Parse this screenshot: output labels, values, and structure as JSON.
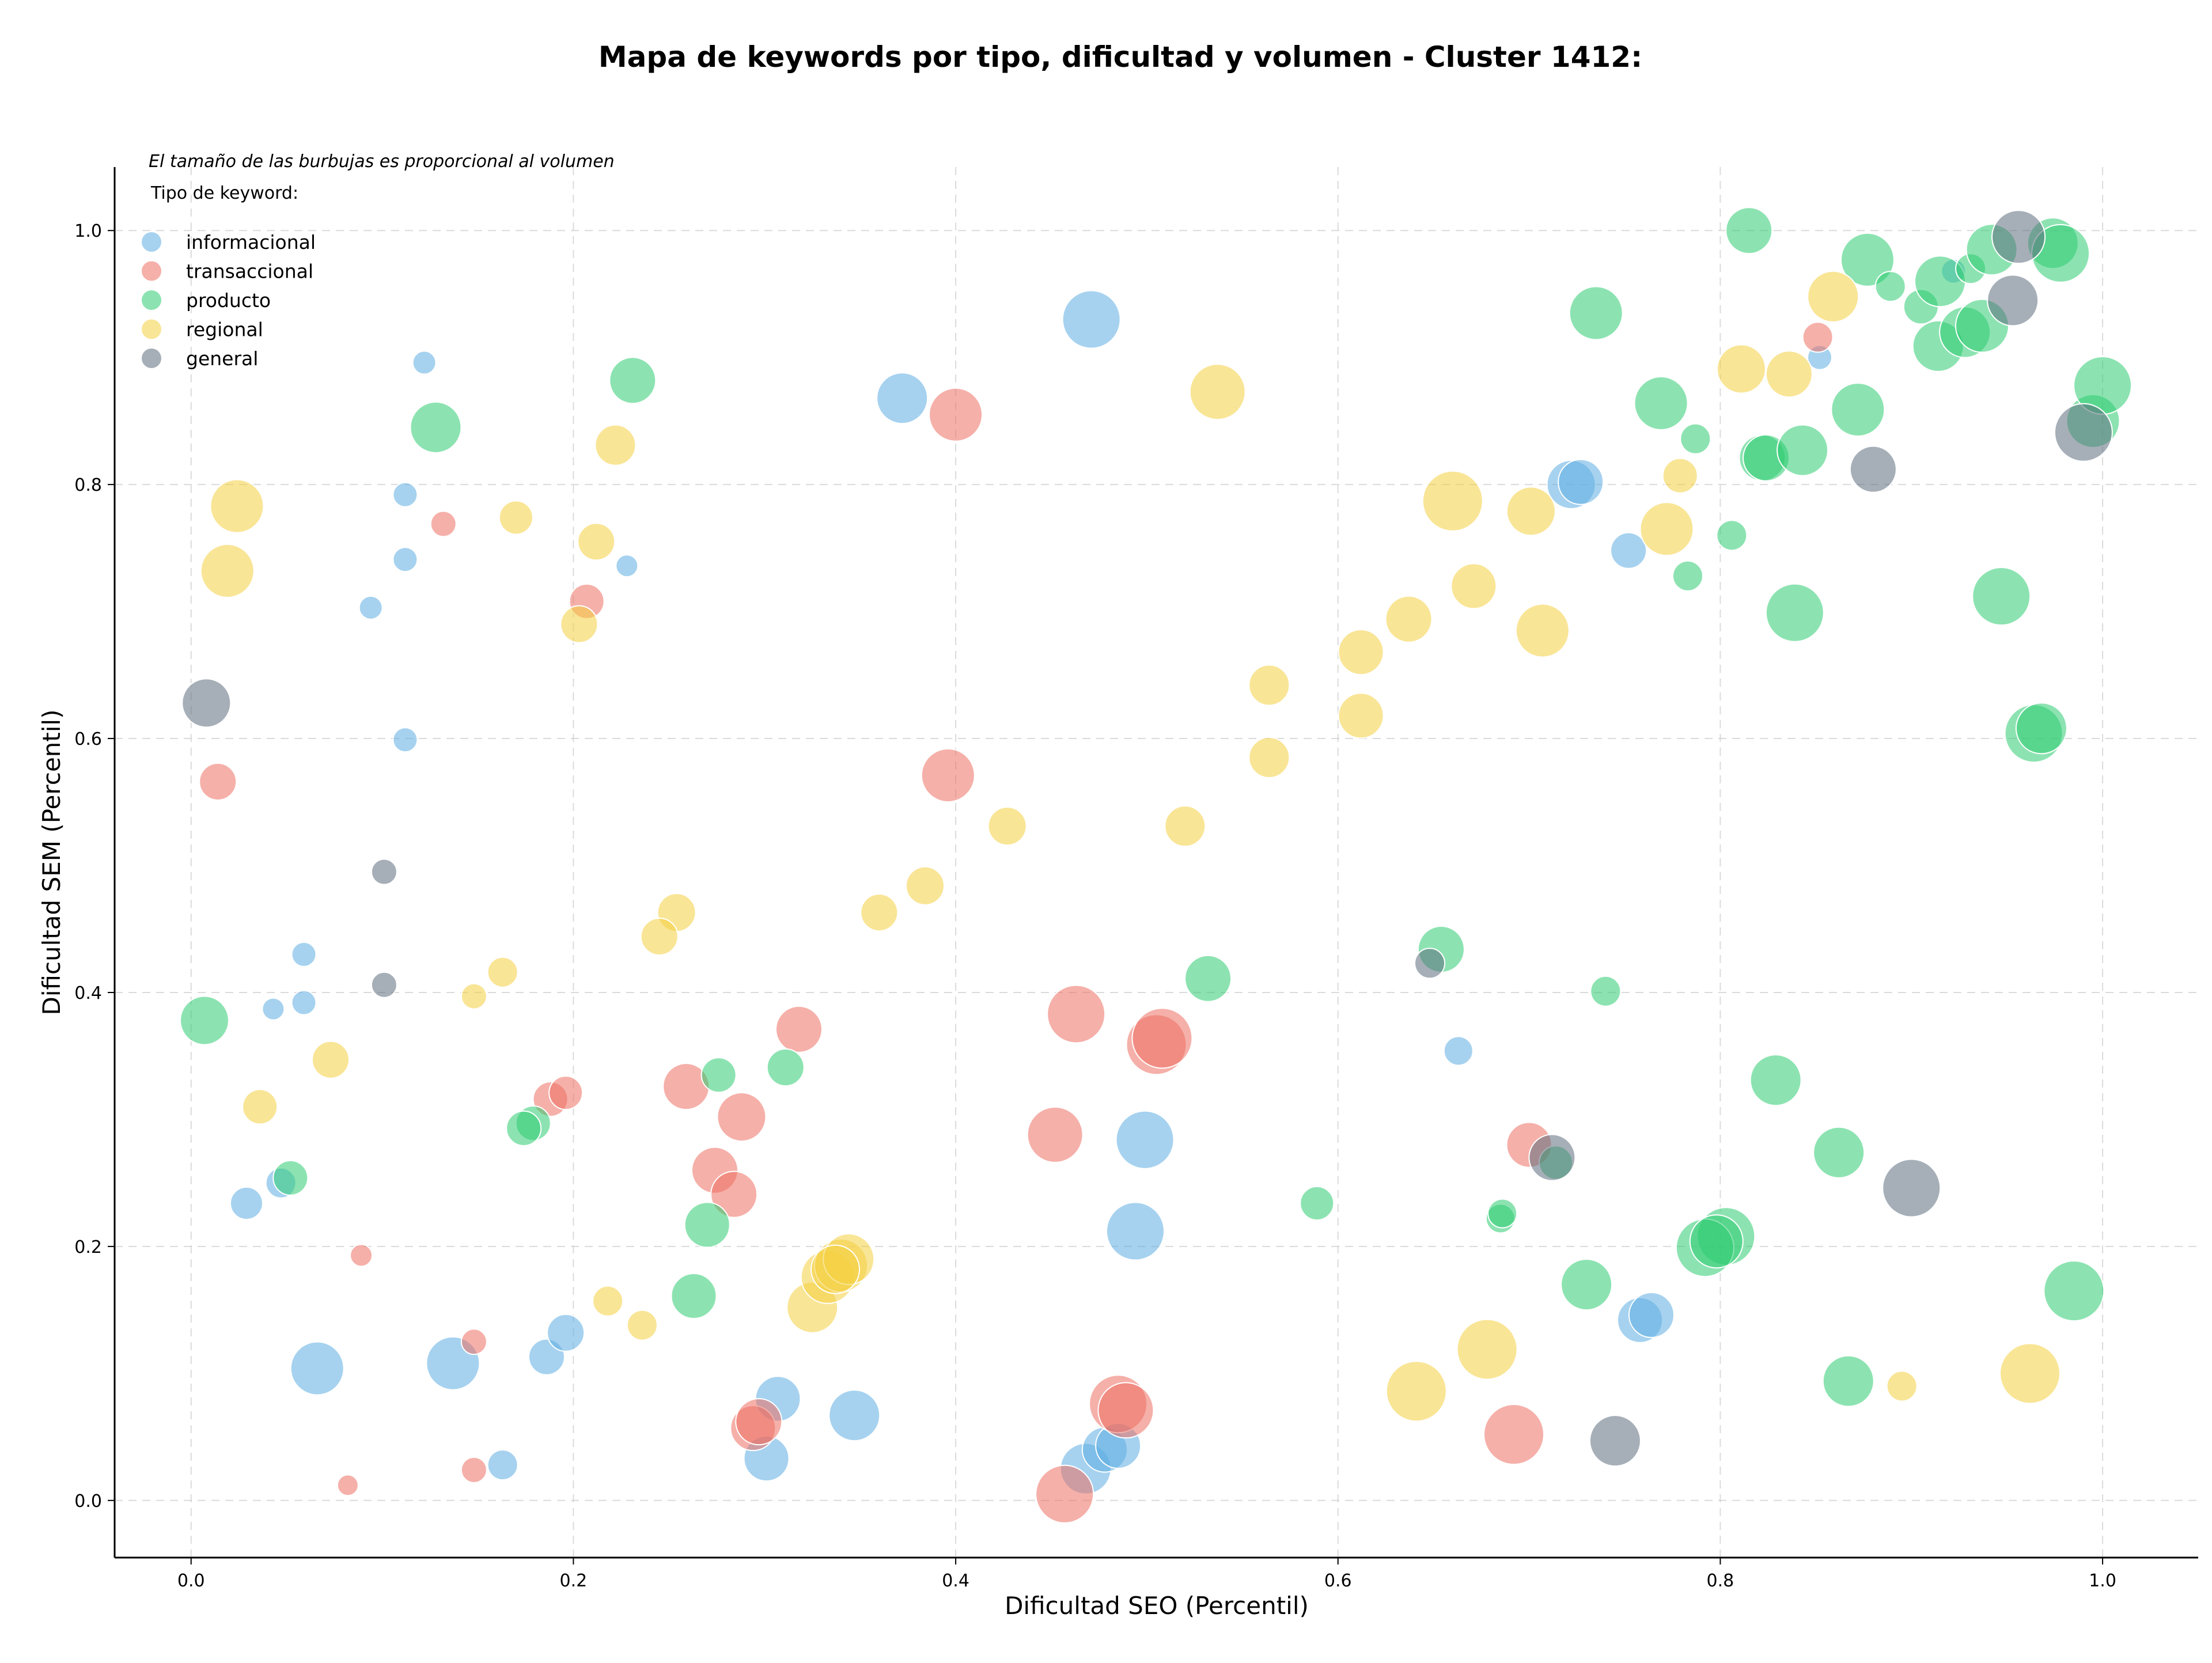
{
  "chart_data": {
    "type": "scatter",
    "title": "Mapa de keywords por tipo, dificultad y volumen - Cluster 1412:",
    "xlabel": "Dificultad SEO (Percentil)",
    "ylabel": "Dificultad SEM (Percentil)",
    "xlim": [
      -0.04,
      1.05
    ],
    "ylim": [
      -0.045,
      1.05
    ],
    "x_ticks": [
      0.0,
      0.2,
      0.4,
      0.6,
      0.8,
      1.0
    ],
    "y_ticks": [
      0.0,
      0.2,
      0.4,
      0.6,
      0.8,
      1.0
    ],
    "x_tick_labels": [
      "0.0",
      "0.2",
      "0.4",
      "0.6",
      "0.8",
      "1.0"
    ],
    "y_tick_labels": [
      "0.0",
      "0.2",
      "0.4",
      "0.6",
      "0.8",
      "1.0"
    ],
    "grid": true,
    "note": "El tamaño de las burbujas es proporcional al volumen",
    "legend_title": "Tipo de keyword:",
    "legend_position": "top-left",
    "series": [
      {
        "name": "informacional",
        "color": "#5dade2",
        "points": [
          [
            0.122,
            0.896,
            20
          ],
          [
            0.112,
            0.792,
            21
          ],
          [
            0.112,
            0.741,
            21
          ],
          [
            0.228,
            0.736,
            19
          ],
          [
            0.094,
            0.703,
            20
          ],
          [
            0.112,
            0.599,
            21
          ],
          [
            0.059,
            0.43,
            21
          ],
          [
            0.059,
            0.392,
            21
          ],
          [
            0.043,
            0.387,
            19
          ],
          [
            0.029,
            0.234,
            28
          ],
          [
            0.047,
            0.25,
            26
          ],
          [
            0.066,
            0.104,
            46
          ],
          [
            0.137,
            0.108,
            46
          ],
          [
            0.186,
            0.113,
            31
          ],
          [
            0.196,
            0.132,
            32
          ],
          [
            0.163,
            0.028,
            26
          ],
          [
            0.307,
            0.08,
            39
          ],
          [
            0.301,
            0.033,
            39
          ],
          [
            0.347,
            0.067,
            44
          ],
          [
            0.372,
            0.868,
            44
          ],
          [
            0.471,
            0.93,
            50
          ],
          [
            0.499,
            0.284,
            50
          ],
          [
            0.494,
            0.212,
            50
          ],
          [
            0.468,
            0.025,
            44
          ],
          [
            0.478,
            0.04,
            39
          ],
          [
            0.485,
            0.043,
            39
          ],
          [
            0.663,
            0.354,
            25
          ],
          [
            0.722,
            0.8,
            42
          ],
          [
            0.727,
            0.802,
            39
          ],
          [
            0.752,
            0.748,
            31
          ],
          [
            0.758,
            0.142,
            39
          ],
          [
            0.764,
            0.146,
            39
          ],
          [
            0.852,
            0.9,
            21
          ],
          [
            0.922,
            0.968,
            21
          ]
        ]
      },
      {
        "name": "transaccional",
        "color": "#ec7063",
        "points": [
          [
            0.014,
            0.566,
            32
          ],
          [
            0.132,
            0.769,
            22
          ],
          [
            0.207,
            0.708,
            30
          ],
          [
            0.188,
            0.316,
            30
          ],
          [
            0.196,
            0.321,
            29
          ],
          [
            0.089,
            0.193,
            19
          ],
          [
            0.148,
            0.125,
            22
          ],
          [
            0.148,
            0.024,
            22
          ],
          [
            0.082,
            0.012,
            18
          ],
          [
            0.259,
            0.326,
            40
          ],
          [
            0.288,
            0.302,
            42
          ],
          [
            0.274,
            0.26,
            40
          ],
          [
            0.284,
            0.241,
            40
          ],
          [
            0.318,
            0.371,
            40
          ],
          [
            0.294,
            0.057,
            39
          ],
          [
            0.297,
            0.062,
            40
          ],
          [
            0.396,
            0.571,
            46
          ],
          [
            0.4,
            0.855,
            46
          ],
          [
            0.463,
            0.383,
            50
          ],
          [
            0.452,
            0.288,
            48
          ],
          [
            0.505,
            0.359,
            52
          ],
          [
            0.508,
            0.364,
            52
          ],
          [
            0.485,
            0.076,
            50
          ],
          [
            0.489,
            0.071,
            48
          ],
          [
            0.457,
            0.005,
            50
          ],
          [
            0.7,
            0.28,
            39
          ],
          [
            0.692,
            0.052,
            52
          ],
          [
            0.851,
            0.916,
            26
          ]
        ]
      },
      {
        "name": "producto",
        "color": "#2ecc71",
        "points": [
          [
            0.128,
            0.845,
            44
          ],
          [
            0.231,
            0.882,
            40
          ],
          [
            0.007,
            0.378,
            42
          ],
          [
            0.052,
            0.254,
            30
          ],
          [
            0.179,
            0.297,
            30
          ],
          [
            0.174,
            0.293,
            30
          ],
          [
            0.276,
            0.335,
            30
          ],
          [
            0.27,
            0.217,
            39
          ],
          [
            0.263,
            0.161,
            39
          ],
          [
            0.311,
            0.341,
            32
          ],
          [
            0.532,
            0.411,
            40
          ],
          [
            0.589,
            0.234,
            29
          ],
          [
            0.654,
            0.434,
            40
          ],
          [
            0.685,
            0.222,
            25
          ],
          [
            0.686,
            0.226,
            25
          ],
          [
            0.714,
            0.266,
            29
          ],
          [
            0.735,
            0.935,
            46
          ],
          [
            0.74,
            0.401,
            26
          ],
          [
            0.73,
            0.17,
            44
          ],
          [
            0.769,
            0.864,
            46
          ],
          [
            0.783,
            0.728,
            26
          ],
          [
            0.787,
            0.836,
            26
          ],
          [
            0.806,
            0.76,
            26
          ],
          [
            0.815,
            1.0,
            40
          ],
          [
            0.822,
            0.821,
            40
          ],
          [
            0.824,
            0.821,
            40
          ],
          [
            0.843,
            0.827,
            44
          ],
          [
            0.839,
            0.699,
            50
          ],
          [
            0.829,
            0.331,
            44
          ],
          [
            0.862,
            0.274,
            44
          ],
          [
            0.867,
            0.094,
            44
          ],
          [
            0.872,
            0.859,
            46
          ],
          [
            0.877,
            0.977,
            46
          ],
          [
            0.889,
            0.956,
            26
          ],
          [
            0.803,
            0.208,
            50
          ],
          [
            0.792,
            0.199,
            50
          ],
          [
            0.798,
            0.204,
            46
          ],
          [
            0.905,
            0.94,
            30
          ],
          [
            0.915,
            0.96,
            44
          ],
          [
            0.914,
            0.909,
            44
          ],
          [
            0.931,
            0.97,
            26
          ],
          [
            0.928,
            0.92,
            44
          ],
          [
            0.937,
            0.925,
            46
          ],
          [
            0.942,
            0.985,
            44
          ],
          [
            0.947,
            0.712,
            50
          ],
          [
            0.964,
            0.604,
            50
          ],
          [
            0.968,
            0.608,
            44
          ],
          [
            0.974,
            0.99,
            44
          ],
          [
            0.978,
            0.982,
            50
          ],
          [
            0.985,
            0.165,
            52
          ],
          [
            0.995,
            0.85,
            46
          ],
          [
            1.0,
            0.878,
            50
          ]
        ]
      },
      {
        "name": "regional",
        "color": "#f4d03f",
        "points": [
          [
            0.024,
            0.783,
            46
          ],
          [
            0.019,
            0.732,
            46
          ],
          [
            0.17,
            0.774,
            29
          ],
          [
            0.222,
            0.831,
            35
          ],
          [
            0.212,
            0.755,
            32
          ],
          [
            0.203,
            0.69,
            32
          ],
          [
            0.163,
            0.416,
            26
          ],
          [
            0.148,
            0.397,
            22
          ],
          [
            0.073,
            0.347,
            32
          ],
          [
            0.036,
            0.31,
            30
          ],
          [
            0.218,
            0.157,
            26
          ],
          [
            0.236,
            0.138,
            26
          ],
          [
            0.254,
            0.463,
            33
          ],
          [
            0.245,
            0.444,
            32
          ],
          [
            0.325,
            0.152,
            44
          ],
          [
            0.333,
            0.176,
            46
          ],
          [
            0.34,
            0.185,
            46
          ],
          [
            0.344,
            0.19,
            44
          ],
          [
            0.337,
            0.182,
            42
          ],
          [
            0.36,
            0.463,
            32
          ],
          [
            0.384,
            0.484,
            33
          ],
          [
            0.427,
            0.531,
            33
          ],
          [
            0.52,
            0.531,
            35
          ],
          [
            0.537,
            0.873,
            48
          ],
          [
            0.564,
            0.642,
            35
          ],
          [
            0.564,
            0.585,
            35
          ],
          [
            0.612,
            0.668,
            39
          ],
          [
            0.612,
            0.618,
            39
          ],
          [
            0.637,
            0.694,
            40
          ],
          [
            0.641,
            0.086,
            52
          ],
          [
            0.66,
            0.787,
            52
          ],
          [
            0.671,
            0.72,
            39
          ],
          [
            0.678,
            0.119,
            52
          ],
          [
            0.701,
            0.779,
            42
          ],
          [
            0.707,
            0.685,
            46
          ],
          [
            0.772,
            0.765,
            46
          ],
          [
            0.779,
            0.807,
            30
          ],
          [
            0.811,
            0.891,
            42
          ],
          [
            0.836,
            0.887,
            40
          ],
          [
            0.859,
            0.948,
            44
          ],
          [
            0.895,
            0.09,
            26
          ],
          [
            0.962,
            0.1,
            52
          ]
        ]
      },
      {
        "name": "general",
        "color": "#5d6d7e",
        "points": [
          [
            0.008,
            0.628,
            42
          ],
          [
            0.101,
            0.495,
            22
          ],
          [
            0.101,
            0.406,
            22
          ],
          [
            0.648,
            0.423,
            26
          ],
          [
            0.712,
            0.27,
            40
          ],
          [
            0.745,
            0.047,
            44
          ],
          [
            0.88,
            0.812,
            40
          ],
          [
            0.9,
            0.246,
            50
          ],
          [
            0.953,
            0.945,
            44
          ],
          [
            0.956,
            0.995,
            46
          ],
          [
            0.99,
            0.841,
            50
          ]
        ]
      }
    ]
  }
}
